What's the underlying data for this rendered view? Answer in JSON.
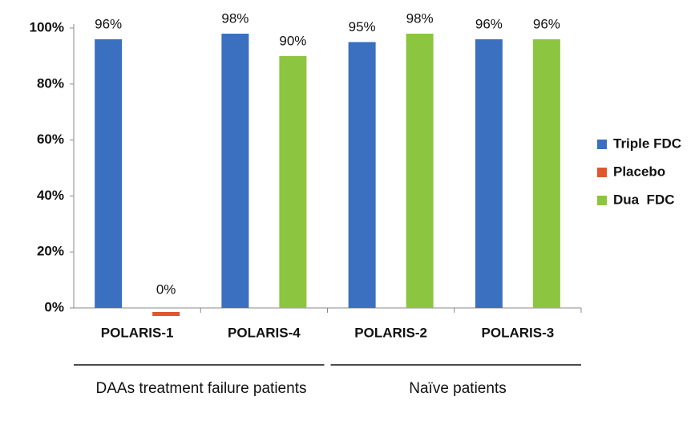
{
  "chart_data": {
    "type": "bar",
    "categories": [
      "POLARIS-1",
      "POLARIS-4",
      "POLARIS-2",
      "POLARIS-3"
    ],
    "series": [
      {
        "name": "Triple FDC",
        "color": "#3b70c0",
        "values": [
          96,
          98,
          95,
          96
        ],
        "value_labels": [
          "96%",
          "98%",
          "95%",
          "96%"
        ]
      },
      {
        "name": "Placebo",
        "color": "#e2552d",
        "values": [
          0,
          null,
          null,
          null
        ],
        "value_labels": [
          "0%",
          null,
          null,
          null
        ]
      },
      {
        "name": "Dua  FDC",
        "color": "#8cc53f",
        "values": [
          null,
          90,
          98,
          96
        ],
        "value_labels": [
          null,
          "90%",
          "98%",
          "96%"
        ]
      }
    ],
    "ylim": [
      0,
      100
    ],
    "yticks": [
      {
        "value": 0,
        "label": "0%"
      },
      {
        "value": 20,
        "label": "20%"
      },
      {
        "value": 40,
        "label": "40%"
      },
      {
        "value": 60,
        "label": "60%"
      },
      {
        "value": 80,
        "label": "80%"
      },
      {
        "value": 100,
        "label": "100%"
      }
    ],
    "group_labels": [
      "DAAs treatment failure patients",
      "Naïve patients"
    ],
    "legend": "right"
  }
}
